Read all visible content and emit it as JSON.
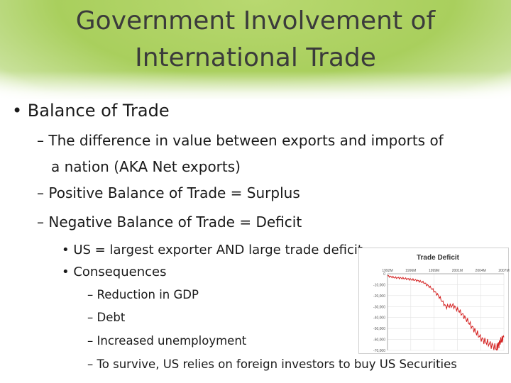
{
  "slide": {
    "title_line1": "Government Involvement of",
    "title_line2": "International Trade",
    "bullet1": "• Balance of Trade",
    "sub1a": "– The difference in value between exports and imports of",
    "sub1b": "a nation (AKA Net exports)",
    "sub2": "– Positive Balance of Trade = Surplus",
    "sub3": "– Negative Balance of Trade = Deficit",
    "subsub1": "• US = largest exporter AND large trade deficit",
    "subsub2": "• Consequences",
    "item1": "– Reduction in GDP",
    "item2": "– Debt",
    "item3": "– Increased unemployment",
    "item4": "– To survive, US relies on  foreign investors to buy US Securities"
  },
  "colors": {
    "header_green": "#a9cf5d",
    "line_red": "#d42020"
  },
  "chart_data": {
    "type": "line",
    "title": "Trade Deficit",
    "x_tick_labels": [
      "1992M",
      "1996M",
      "1999M",
      "2001M",
      "2004M",
      "2007M"
    ],
    "y_tick_labels": [
      "0",
      "-10,000",
      "-20,000",
      "-30,000",
      "-40,000",
      "-50,000",
      "-60,000",
      "-70,000"
    ],
    "ylim": [
      -70000,
      0
    ],
    "xlim": [
      1992,
      2008
    ],
    "grid": true,
    "series": [
      {
        "x": [
          1992,
          1993,
          1994,
          1995,
          1996,
          1997,
          1998,
          1999,
          2000,
          2001,
          2002,
          2003,
          2004,
          2005,
          2006,
          2007,
          2007.5,
          2008
        ],
        "values": [
          -2000,
          -3500,
          -4000,
          -5000,
          -6000,
          -8000,
          -13000,
          -20000,
          -30000,
          -29000,
          -35000,
          -43000,
          -52000,
          -60000,
          -64000,
          -68000,
          -62000,
          -58000
        ]
      }
    ]
  }
}
